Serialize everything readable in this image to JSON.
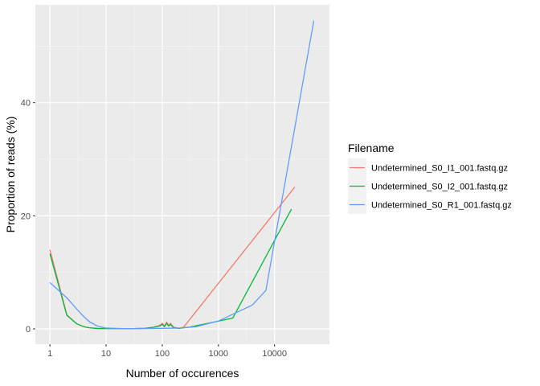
{
  "chart_data": {
    "type": "line",
    "xlabel": "Number of occurences",
    "ylabel": "Proportion of reads (%)",
    "x_scale": "log10",
    "xlim": [
      0.55,
      95000
    ],
    "ylim": [
      -2.7,
      57.3
    ],
    "x_ticks": [
      1,
      10,
      100,
      1000,
      10000
    ],
    "x_tick_labels": [
      "1",
      "10",
      "100",
      "1000",
      "10000"
    ],
    "y_ticks": [
      0,
      20,
      40
    ],
    "y_tick_labels": [
      "0",
      "20",
      "40"
    ],
    "grid": true,
    "panel_background": "#ebebeb",
    "legend": {
      "title": "Filename",
      "position": "right"
    },
    "series": [
      {
        "name": "Undetermined_S0_I1_001.fastq.gz",
        "color": "#f8766d",
        "points": [
          [
            1,
            14.0
          ],
          [
            2,
            2.5
          ],
          [
            3,
            0.9
          ],
          [
            4,
            0.4
          ],
          [
            5,
            0.2
          ],
          [
            7,
            0.08
          ],
          [
            10,
            0.05
          ],
          [
            15,
            0.05
          ],
          [
            20,
            0.05
          ],
          [
            30,
            0.05
          ],
          [
            50,
            0.1
          ],
          [
            70,
            0.3
          ],
          [
            90,
            0.6
          ],
          [
            100,
            1.0
          ],
          [
            110,
            0.5
          ],
          [
            120,
            1.2
          ],
          [
            130,
            0.6
          ],
          [
            140,
            1.0
          ],
          [
            160,
            0.3
          ],
          [
            200,
            0.1
          ],
          [
            240,
            0.3
          ],
          [
            23000,
            25.1
          ]
        ]
      },
      {
        "name": "Undetermined_S0_I2_001.fastq.gz",
        "color": "#00ba38",
        "points": [
          [
            1,
            13.3
          ],
          [
            2,
            2.4
          ],
          [
            3,
            0.9
          ],
          [
            4,
            0.4
          ],
          [
            5,
            0.2
          ],
          [
            7,
            0.08
          ],
          [
            10,
            0.05
          ],
          [
            15,
            0.05
          ],
          [
            20,
            0.05
          ],
          [
            30,
            0.05
          ],
          [
            50,
            0.1
          ],
          [
            70,
            0.3
          ],
          [
            90,
            0.5
          ],
          [
            100,
            0.8
          ],
          [
            110,
            0.4
          ],
          [
            120,
            1.0
          ],
          [
            130,
            0.5
          ],
          [
            140,
            0.8
          ],
          [
            160,
            0.2
          ],
          [
            200,
            0.1
          ],
          [
            300,
            0.3
          ],
          [
            1800,
            1.9
          ],
          [
            20000,
            21.2
          ]
        ]
      },
      {
        "name": "Undetermined_S0_R1_001.fastq.gz",
        "color": "#619cff",
        "points": [
          [
            1,
            8.2
          ],
          [
            2,
            5.5
          ],
          [
            3,
            3.5
          ],
          [
            4,
            2.2
          ],
          [
            5,
            1.3
          ],
          [
            7,
            0.5
          ],
          [
            10,
            0.15
          ],
          [
            20,
            0.05
          ],
          [
            50,
            0.05
          ],
          [
            100,
            0.1
          ],
          [
            200,
            0.15
          ],
          [
            400,
            0.4
          ],
          [
            1000,
            1.4
          ],
          [
            2000,
            2.8
          ],
          [
            4000,
            4.2
          ],
          [
            7000,
            6.8
          ],
          [
            50000,
            54.5
          ]
        ]
      }
    ]
  }
}
